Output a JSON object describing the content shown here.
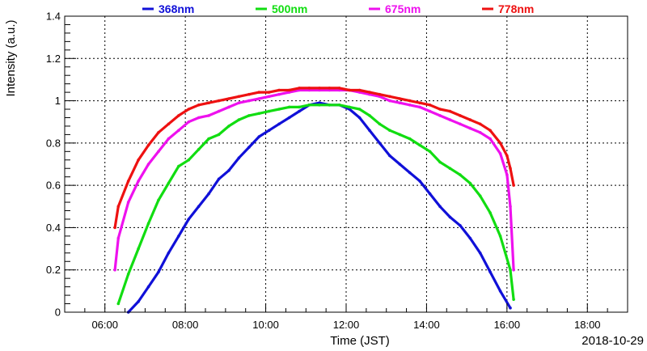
{
  "chart_data": {
    "type": "line",
    "title": "",
    "xlabel": "Time (JST)",
    "ylabel": "Intensity (a.u.)",
    "date_label": "2018-10-29",
    "xlim": [
      "05:00",
      "19:00"
    ],
    "ylim": [
      0,
      1.4
    ],
    "x_ticks": [
      "06:00",
      "08:00",
      "10:00",
      "12:00",
      "14:00",
      "16:00",
      "18:00"
    ],
    "y_ticks": [
      "0",
      "0.2",
      "0.4",
      "0.6",
      "0.8",
      "1",
      "1.2",
      "1.4"
    ],
    "grid": true,
    "legend_position": "top",
    "series": [
      {
        "name": "368nm",
        "color": "#1010d8",
        "x": [
          "06:35",
          "06:50",
          "07:05",
          "07:20",
          "07:35",
          "07:50",
          "08:05",
          "08:20",
          "08:35",
          "08:50",
          "09:05",
          "09:20",
          "09:35",
          "09:50",
          "10:05",
          "10:20",
          "10:35",
          "10:50",
          "11:05",
          "11:20",
          "11:35",
          "11:50",
          "12:05",
          "12:20",
          "12:35",
          "12:50",
          "13:05",
          "13:20",
          "13:35",
          "13:50",
          "14:05",
          "14:20",
          "14:35",
          "14:50",
          "15:05",
          "15:20",
          "15:35",
          "15:50",
          "16:05"
        ],
        "y": [
          0.0,
          0.05,
          0.12,
          0.19,
          0.28,
          0.36,
          0.44,
          0.5,
          0.56,
          0.63,
          0.67,
          0.73,
          0.78,
          0.83,
          0.86,
          0.89,
          0.92,
          0.95,
          0.98,
          0.99,
          0.98,
          0.98,
          0.96,
          0.92,
          0.86,
          0.8,
          0.74,
          0.7,
          0.66,
          0.62,
          0.56,
          0.5,
          0.45,
          0.41,
          0.35,
          0.28,
          0.19,
          0.1,
          0.02
        ]
      },
      {
        "name": "500nm",
        "color": "#11dd11",
        "x": [
          "06:20",
          "06:35",
          "06:50",
          "07:05",
          "07:20",
          "07:35",
          "07:50",
          "08:05",
          "08:20",
          "08:35",
          "08:50",
          "09:05",
          "09:20",
          "09:35",
          "09:50",
          "10:05",
          "10:20",
          "10:35",
          "10:50",
          "11:05",
          "11:20",
          "11:35",
          "11:50",
          "12:05",
          "12:20",
          "12:35",
          "12:50",
          "13:05",
          "13:20",
          "13:35",
          "13:50",
          "14:05",
          "14:20",
          "14:35",
          "14:50",
          "15:05",
          "15:20",
          "15:35",
          "15:50",
          "16:05",
          "16:10"
        ],
        "y": [
          0.04,
          0.18,
          0.3,
          0.42,
          0.53,
          0.61,
          0.69,
          0.72,
          0.77,
          0.82,
          0.84,
          0.88,
          0.91,
          0.93,
          0.94,
          0.95,
          0.96,
          0.97,
          0.97,
          0.98,
          0.98,
          0.98,
          0.98,
          0.97,
          0.96,
          0.93,
          0.89,
          0.86,
          0.84,
          0.82,
          0.79,
          0.76,
          0.71,
          0.68,
          0.65,
          0.61,
          0.55,
          0.47,
          0.36,
          0.2,
          0.06
        ]
      },
      {
        "name": "675nm",
        "color": "#ee11ee",
        "x": [
          "06:15",
          "06:20",
          "06:35",
          "06:50",
          "07:05",
          "07:20",
          "07:35",
          "07:50",
          "08:05",
          "08:20",
          "08:35",
          "08:50",
          "09:05",
          "09:20",
          "09:35",
          "09:50",
          "10:05",
          "10:20",
          "10:35",
          "10:50",
          "11:05",
          "11:20",
          "11:35",
          "11:50",
          "12:05",
          "12:20",
          "12:35",
          "12:50",
          "13:05",
          "13:20",
          "13:35",
          "13:50",
          "14:05",
          "14:20",
          "14:35",
          "14:50",
          "15:05",
          "15:20",
          "15:35",
          "15:50",
          "16:00",
          "16:05",
          "16:10"
        ],
        "y": [
          0.2,
          0.35,
          0.52,
          0.62,
          0.7,
          0.76,
          0.82,
          0.86,
          0.9,
          0.92,
          0.93,
          0.95,
          0.97,
          0.99,
          1.0,
          1.01,
          1.02,
          1.03,
          1.04,
          1.05,
          1.05,
          1.05,
          1.05,
          1.05,
          1.05,
          1.04,
          1.03,
          1.02,
          1.0,
          0.99,
          0.98,
          0.97,
          0.95,
          0.93,
          0.91,
          0.89,
          0.87,
          0.85,
          0.82,
          0.75,
          0.65,
          0.5,
          0.2
        ]
      },
      {
        "name": "778nm",
        "color": "#ee1111",
        "x": [
          "06:15",
          "06:20",
          "06:35",
          "06:50",
          "07:05",
          "07:20",
          "07:35",
          "07:50",
          "08:05",
          "08:20",
          "08:35",
          "08:50",
          "09:05",
          "09:20",
          "09:35",
          "09:50",
          "10:05",
          "10:20",
          "10:35",
          "10:50",
          "11:05",
          "11:20",
          "11:35",
          "11:50",
          "12:05",
          "12:20",
          "12:35",
          "12:50",
          "13:05",
          "13:20",
          "13:35",
          "13:50",
          "14:05",
          "14:20",
          "14:35",
          "14:50",
          "15:05",
          "15:20",
          "15:35",
          "15:50",
          "16:00",
          "16:05",
          "16:10"
        ],
        "y": [
          0.4,
          0.5,
          0.62,
          0.72,
          0.79,
          0.85,
          0.89,
          0.93,
          0.96,
          0.98,
          0.99,
          1.0,
          1.01,
          1.02,
          1.03,
          1.04,
          1.04,
          1.05,
          1.05,
          1.06,
          1.06,
          1.06,
          1.06,
          1.06,
          1.05,
          1.05,
          1.04,
          1.03,
          1.02,
          1.01,
          1.0,
          0.99,
          0.98,
          0.96,
          0.95,
          0.93,
          0.91,
          0.89,
          0.86,
          0.8,
          0.74,
          0.68,
          0.6
        ]
      }
    ]
  }
}
